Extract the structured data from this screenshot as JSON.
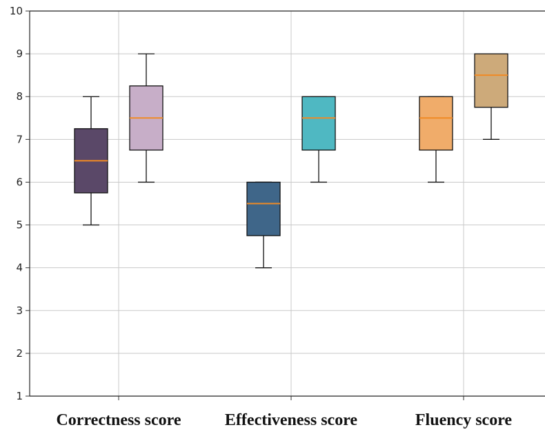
{
  "chart_data": {
    "type": "box",
    "categories": [
      "Correctness score",
      "Effectiveness score",
      "Fluency score"
    ],
    "ylim": [
      1,
      10
    ],
    "yticks": [
      "1",
      "2",
      "3",
      "4",
      "5",
      "6",
      "7",
      "8",
      "9",
      "10"
    ],
    "grid": true,
    "legend": "none",
    "boxes": [
      {
        "category": 0,
        "offset": -1,
        "whisker_low": 5,
        "q1": 5.75,
        "median": 6.5,
        "q3": 7.25,
        "whisker_high": 8,
        "color": "#5a4868"
      },
      {
        "category": 0,
        "offset": 1,
        "whisker_low": 6,
        "q1": 6.75,
        "median": 7.5,
        "q3": 8.25,
        "whisker_high": 9,
        "color": "#c7aec8"
      },
      {
        "category": 1,
        "offset": -1,
        "whisker_low": 4,
        "q1": 4.75,
        "median": 5.5,
        "q3": 6,
        "whisker_high": 6,
        "color": "#3f6689"
      },
      {
        "category": 1,
        "offset": 1,
        "whisker_low": 6,
        "q1": 6.75,
        "median": 7.5,
        "q3": 8,
        "whisker_high": 8,
        "color": "#4fb8c2"
      },
      {
        "category": 2,
        "offset": -1,
        "whisker_low": 6,
        "q1": 6.75,
        "median": 7.5,
        "q3": 8,
        "whisker_high": 8,
        "color": "#f0ac6a"
      },
      {
        "category": 2,
        "offset": 1,
        "whisker_low": 7,
        "q1": 7.75,
        "median": 8.5,
        "q3": 9,
        "whisker_high": 9,
        "color": "#cdaa7a"
      }
    ],
    "median_color": "#f08a24"
  }
}
